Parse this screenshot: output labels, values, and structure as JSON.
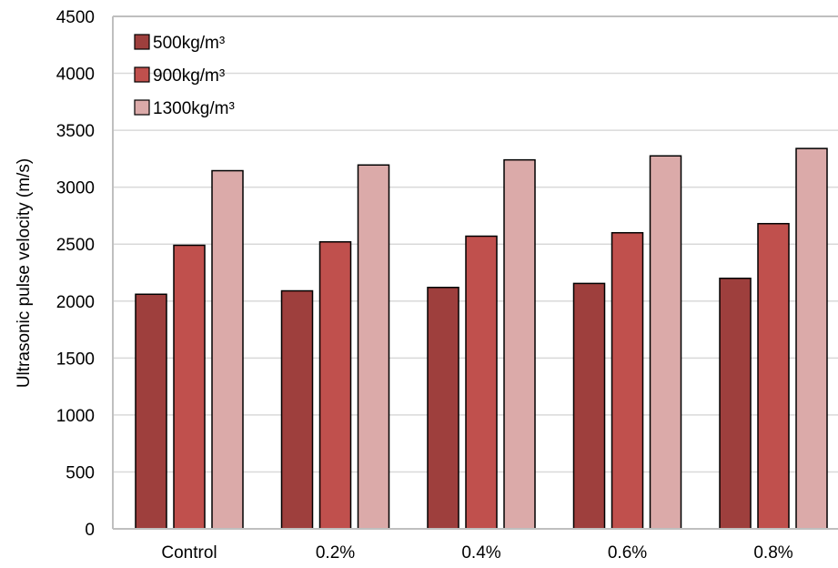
{
  "chart_data": {
    "type": "bar",
    "title": "",
    "xlabel": "",
    "ylabel": "Ultrasonic pulse velocity (m/s)",
    "ylim": [
      0,
      4500
    ],
    "yticks": [
      0,
      500,
      1000,
      1500,
      2000,
      2500,
      3000,
      3500,
      4000,
      4500
    ],
    "grid": true,
    "legend_position": "top-left",
    "categories": [
      "Control",
      "0.2%",
      "0.4%",
      "0.6%",
      "0.8%"
    ],
    "series": [
      {
        "name": "500kg/m³",
        "color": "#9e3f3d",
        "values": [
          2060,
          2090,
          2120,
          2155,
          2200
        ]
      },
      {
        "name": "900kg/m³",
        "color": "#c0504d",
        "values": [
          2490,
          2520,
          2570,
          2600,
          2680
        ]
      },
      {
        "name": "1300kg/m³",
        "color": "#dbaaa9",
        "values": [
          3145,
          3195,
          3240,
          3275,
          3340
        ]
      }
    ]
  }
}
